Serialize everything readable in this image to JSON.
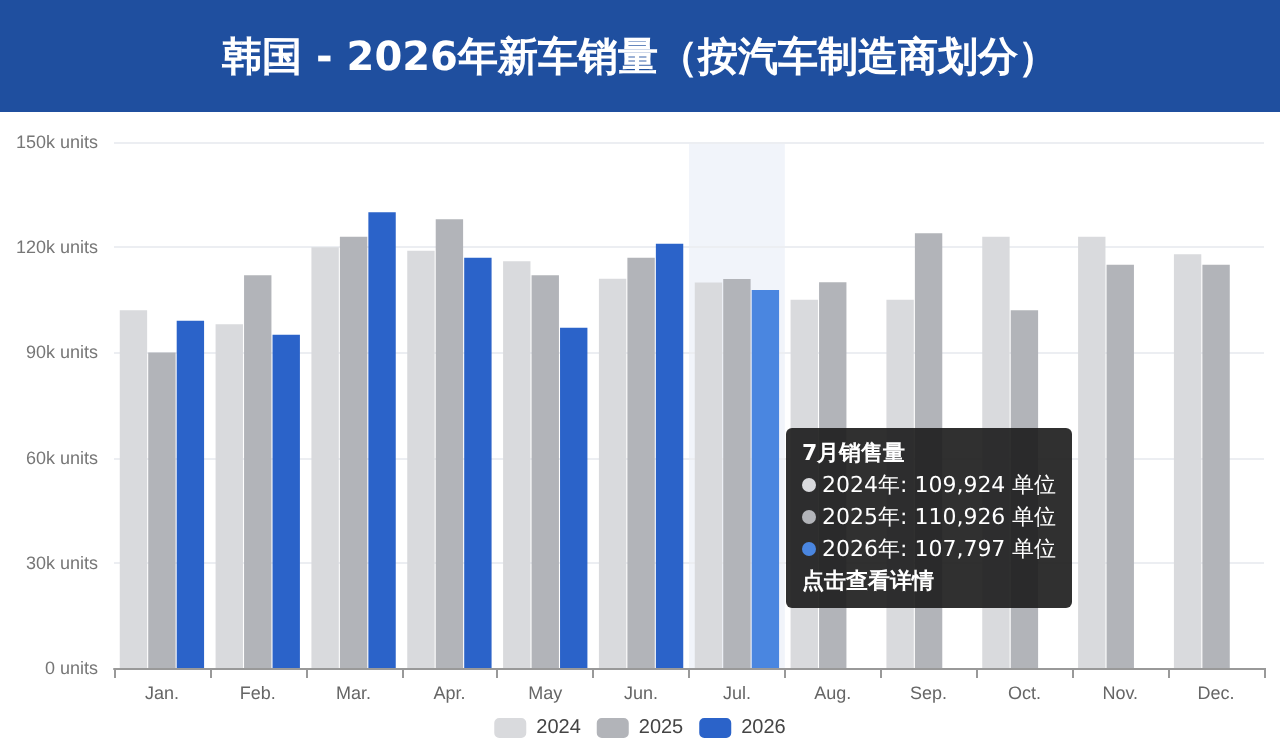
{
  "chart_data": {
    "type": "bar",
    "title": "韩国 - 2026年新车销量（按汽车制造商划分）",
    "categories": [
      "Jan.",
      "Feb.",
      "Mar.",
      "Apr.",
      "May",
      "Jun.",
      "Jul.",
      "Aug.",
      "Sep.",
      "Oct.",
      "Nov.",
      "Dec."
    ],
    "series": [
      {
        "name": "2024",
        "color": "#d9dadd",
        "values": [
          102000,
          98000,
          120000,
          119000,
          116000,
          111000,
          109924,
          105000,
          105000,
          123000,
          123000,
          118000
        ]
      },
      {
        "name": "2025",
        "color": "#b2b4b9",
        "values": [
          90000,
          112000,
          123000,
          128000,
          112000,
          117000,
          110926,
          110000,
          124000,
          102000,
          115000,
          115000
        ]
      },
      {
        "name": "2026",
        "color": "#2b63c9",
        "colors": [
          "#2b63c9",
          "#2b63c9",
          "#2b63c9",
          "#2b63c9",
          "#2b63c9",
          "#2b63c9",
          "#4a86e0",
          null,
          null,
          null,
          null,
          null
        ],
        "values": [
          99000,
          95000,
          130000,
          117000,
          97000,
          121000,
          107797,
          null,
          null,
          null,
          null,
          null
        ]
      }
    ],
    "ylim": [
      0,
      150000
    ],
    "yticks": [
      {
        "value": 0,
        "label": "0 units"
      },
      {
        "value": 30000,
        "label": "30k units"
      },
      {
        "value": 60000,
        "label": "60k units"
      },
      {
        "value": 90000,
        "label": "90k units"
      },
      {
        "value": 120000,
        "label": "120k units"
      },
      {
        "value": 150000,
        "label": "150k units"
      }
    ],
    "grid": "y",
    "legend": "bottom",
    "bands": [
      {
        "axis": "x",
        "from": "Jul.",
        "to": "Jul.",
        "color": "#f1f4fa"
      }
    ],
    "annotations": [
      "7月销售量",
      "2024年:  109,924 单位",
      "2025年:  110,926 单位",
      "2026年:  107,797 单位",
      "点击查看详情"
    ]
  }
}
